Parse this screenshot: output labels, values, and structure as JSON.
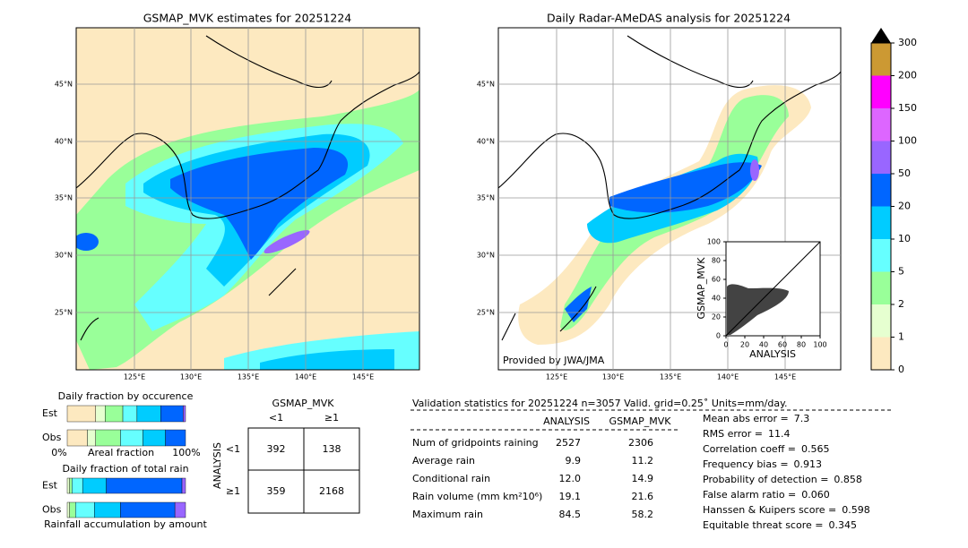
{
  "maps": [
    {
      "title": "GSMAP_MVK estimates for 20251224",
      "lat_labels": [
        "45°N",
        "40°N",
        "35°N",
        "30°N",
        "25°N"
      ],
      "lon_labels": [
        "125°E",
        "130°E",
        "135°E",
        "140°E",
        "145°E"
      ]
    },
    {
      "title": "Daily Radar-AMeDAS analysis for 20251224",
      "credit": "Provided by JWA/JMA",
      "lat_labels": [
        "45°N",
        "40°N",
        "35°N",
        "30°N",
        "25°N"
      ],
      "lon_labels": [
        "125°E",
        "130°E",
        "135°E",
        "140°E",
        "145°E"
      ]
    }
  ],
  "colorbar": {
    "levels": [
      0,
      1,
      2,
      5,
      10,
      20,
      50,
      100,
      150,
      200,
      300
    ],
    "colors": [
      "#fde9c0",
      "#e6ffd0",
      "#99ff99",
      "#66ffff",
      "#00ccff",
      "#0066ff",
      "#9966ff",
      "#dd66ff",
      "#ff00ff",
      "#cc9933"
    ]
  },
  "scatter": {
    "xlabel": "ANALYSIS",
    "ylabel": "GSMAP_MVK",
    "xlim": [
      0,
      100
    ],
    "ylim": [
      0,
      100
    ],
    "xticks": [
      0,
      20,
      40,
      60,
      80,
      100
    ],
    "yticks": [
      0,
      20,
      40,
      60,
      80,
      100
    ]
  },
  "occurrence": {
    "title": "Daily fraction by occurence",
    "rows": [
      "Est",
      "Obs"
    ],
    "xlabels": [
      "0%",
      "Areal fraction",
      "100%"
    ],
    "fractions": [
      [
        24,
        8,
        15,
        12,
        20,
        19,
        2
      ],
      [
        17,
        7,
        21,
        19,
        19,
        17,
        0
      ]
    ]
  },
  "total_rain": {
    "title": "Daily fraction of total rain",
    "rows": [
      "Est",
      "Obs"
    ],
    "xlabel": "Rainfall accumulation by amount",
    "fractions": [
      [
        0,
        2,
        2,
        9,
        20,
        64,
        3
      ],
      [
        0,
        2,
        5,
        16,
        22,
        46,
        9
      ]
    ]
  },
  "contingency": {
    "title": "GSMAP_MVK",
    "columns": [
      "<1",
      "≥1"
    ],
    "row_title": "ANALYSIS",
    "rows": [
      "<1",
      "≥1"
    ],
    "cells": [
      [
        392,
        138
      ],
      [
        359,
        2168
      ]
    ]
  },
  "validation": {
    "header": "Validation statistics for 20251224  n=3057 Valid. grid=0.25˚ Units=mm/day.",
    "columns": [
      "ANALYSIS",
      "GSMAP_MVK"
    ],
    "rows": [
      {
        "label": "Num of gridpoints raining",
        "values": [
          "2527",
          "2306"
        ]
      },
      {
        "label": "Average rain",
        "values": [
          "9.9",
          "11.2"
        ]
      },
      {
        "label": "Conditional rain",
        "values": [
          "12.0",
          "14.9"
        ]
      },
      {
        "label": "Rain volume (mm km²10⁶)",
        "values": [
          "19.1",
          "21.6"
        ]
      },
      {
        "label": "Maximum rain",
        "values": [
          "84.5",
          "58.2"
        ]
      }
    ],
    "scores": [
      {
        "label": "Mean abs error =",
        "value": "7.3"
      },
      {
        "label": "RMS error =",
        "value": "11.4"
      },
      {
        "label": "Correlation coeff =",
        "value": "0.565"
      },
      {
        "label": "Frequency bias =",
        "value": "0.913"
      },
      {
        "label": "Probability of detection =",
        "value": "0.858"
      },
      {
        "label": "False alarm ratio =",
        "value": "0.060"
      },
      {
        "label": "Hanssen & Kuipers score =",
        "value": "0.598"
      },
      {
        "label": "Equitable threat score =",
        "value": "0.345"
      }
    ]
  }
}
